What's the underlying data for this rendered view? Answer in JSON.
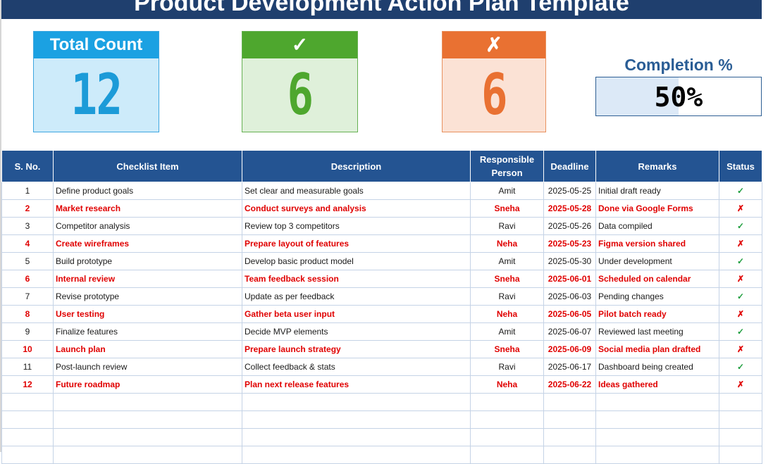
{
  "title": "Product Development Action Plan Template",
  "cards": {
    "total": {
      "label": "Total Count",
      "value": "12"
    },
    "done": {
      "label": "✓",
      "value": "6"
    },
    "pending": {
      "label": "✗",
      "value": "6"
    }
  },
  "completion": {
    "label": "Completion %",
    "value": "50%",
    "fraction": 0.5
  },
  "colors": {
    "banner": "#1f3f6e",
    "header": "#245492",
    "done": "#4ea72e",
    "pending": "#e97132",
    "total": "#1ba1e2",
    "alert_text": "#e00000"
  },
  "table": {
    "headers": [
      "S. No.",
      "Checklist Item",
      "Description",
      "Responsible Person",
      "Deadline",
      "Remarks",
      "Status"
    ],
    "rows": [
      {
        "no": "1",
        "item": "Define product goals",
        "desc": "Set clear and measurable goals",
        "person": "Amit",
        "deadline": "2025-05-25",
        "remarks": "Initial draft ready",
        "status": "✓"
      },
      {
        "no": "2",
        "item": "Market research",
        "desc": "Conduct surveys and analysis",
        "person": "Sneha",
        "deadline": "2025-05-28",
        "remarks": "Done via Google Forms",
        "status": "✗"
      },
      {
        "no": "3",
        "item": "Competitor analysis",
        "desc": "Review top 3 competitors",
        "person": "Ravi",
        "deadline": "2025-05-26",
        "remarks": "Data compiled",
        "status": "✓"
      },
      {
        "no": "4",
        "item": "Create wireframes",
        "desc": "Prepare layout of features",
        "person": "Neha",
        "deadline": "2025-05-23",
        "remarks": "Figma version shared",
        "status": "✗"
      },
      {
        "no": "5",
        "item": "Build prototype",
        "desc": "Develop basic product model",
        "person": "Amit",
        "deadline": "2025-05-30",
        "remarks": "Under development",
        "status": "✓"
      },
      {
        "no": "6",
        "item": "Internal review",
        "desc": "Team feedback session",
        "person": "Sneha",
        "deadline": "2025-06-01",
        "remarks": "Scheduled on calendar",
        "status": "✗"
      },
      {
        "no": "7",
        "item": "Revise prototype",
        "desc": "Update as per feedback",
        "person": "Ravi",
        "deadline": "2025-06-03",
        "remarks": "Pending changes",
        "status": "✓"
      },
      {
        "no": "8",
        "item": "User testing",
        "desc": "Gather beta user input",
        "person": "Neha",
        "deadline": "2025-06-05",
        "remarks": "Pilot batch ready",
        "status": "✗"
      },
      {
        "no": "9",
        "item": "Finalize features",
        "desc": "Decide MVP elements",
        "person": "Amit",
        "deadline": "2025-06-07",
        "remarks": "Reviewed last meeting",
        "status": "✓"
      },
      {
        "no": "10",
        "item": "Launch plan",
        "desc": "Prepare launch strategy",
        "person": "Sneha",
        "deadline": "2025-06-09",
        "remarks": "Social media plan drafted",
        "status": "✗"
      },
      {
        "no": "11",
        "item": "Post-launch review",
        "desc": "Collect feedback & stats",
        "person": "Ravi",
        "deadline": "2025-06-17",
        "remarks": "Dashboard being created",
        "status": "✓"
      },
      {
        "no": "12",
        "item": "Future roadmap",
        "desc": "Plan next release features",
        "person": "Neha",
        "deadline": "2025-06-22",
        "remarks": "Ideas gathered",
        "status": "✗"
      }
    ]
  }
}
